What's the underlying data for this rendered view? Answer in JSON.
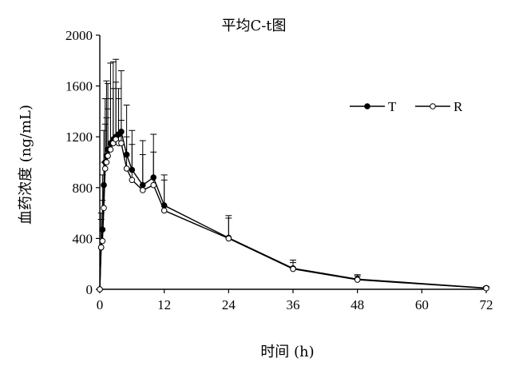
{
  "chart_data": {
    "type": "line",
    "title": "平均C-t图",
    "xlabel": "时间 (h)",
    "ylabel": "血药浓度 (ng/mL)",
    "xlim": [
      0,
      72
    ],
    "ylim": [
      0,
      2000
    ],
    "xticks": [
      0,
      12,
      24,
      36,
      48,
      60,
      72
    ],
    "yticks": [
      0,
      400,
      800,
      1200,
      1600,
      2000
    ],
    "grid": false,
    "legend_position": "top-right",
    "x": [
      0,
      0.25,
      0.5,
      0.75,
      1,
      1.25,
      1.5,
      2,
      2.5,
      3,
      3.5,
      4,
      5,
      6,
      8,
      10,
      12,
      24,
      36,
      48,
      72
    ],
    "series": [
      {
        "name": "T",
        "marker": "filled-circle",
        "color": "#000000",
        "values": [
          0,
          330,
          470,
          820,
          1000,
          1050,
          1100,
          1150,
          1180,
          1200,
          1220,
          1240,
          1060,
          940,
          820,
          880,
          660,
          405,
          165,
          80,
          10
        ],
        "error_upper": [
          0,
          600,
          900,
          1250,
          1500,
          1640,
          1620,
          1780,
          1790,
          1810,
          1580,
          1720,
          1450,
          1250,
          1170,
          1220,
          900,
          580,
          230,
          115,
          20
        ]
      },
      {
        "name": "R",
        "marker": "open-circle",
        "color": "#000000",
        "values": [
          0,
          330,
          380,
          640,
          950,
          1000,
          1050,
          1100,
          1150,
          1180,
          1150,
          1150,
          950,
          860,
          780,
          820,
          620,
          400,
          160,
          75,
          8
        ],
        "error_upper": [
          0,
          550,
          700,
          1000,
          1300,
          1350,
          1420,
          1500,
          1580,
          1630,
          1500,
          1330,
          1200,
          1140,
          1060,
          1080,
          860,
          560,
          210,
          105,
          15
        ]
      }
    ]
  }
}
